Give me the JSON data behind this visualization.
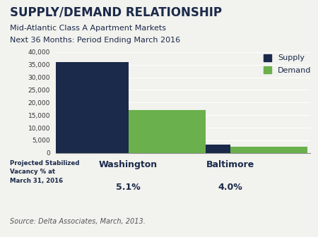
{
  "title": "SUPPLY/DEMAND RELATIONSHIP",
  "subtitle1": "Mid-Atlantic Class A Apartment Markets",
  "subtitle2": "Next 36 Months: Period Ending March 2016",
  "source": "Source: Delta Associates, March, 2013.",
  "categories": [
    "Washington",
    "Baltimore"
  ],
  "supply_values": [
    36000,
    3200
  ],
  "demand_values": [
    17000,
    2500
  ],
  "supply_color": "#1b2a4a",
  "demand_color": "#6ab04c",
  "vacancy_labels": [
    "5.1%",
    "4.0%"
  ],
  "vacancy_prefix": "Projected Stabilized\nVacancy % at\nMarch 31, 2016",
  "ylim": [
    0,
    40000
  ],
  "yticks": [
    0,
    5000,
    10000,
    15000,
    20000,
    25000,
    30000,
    35000,
    40000
  ],
  "background_color": "#f2f2ee",
  "legend_labels": [
    "Supply",
    "Demand"
  ],
  "bar_width": 0.32,
  "title_fontsize": 12,
  "subtitle_fontsize": 8,
  "source_fontsize": 7
}
